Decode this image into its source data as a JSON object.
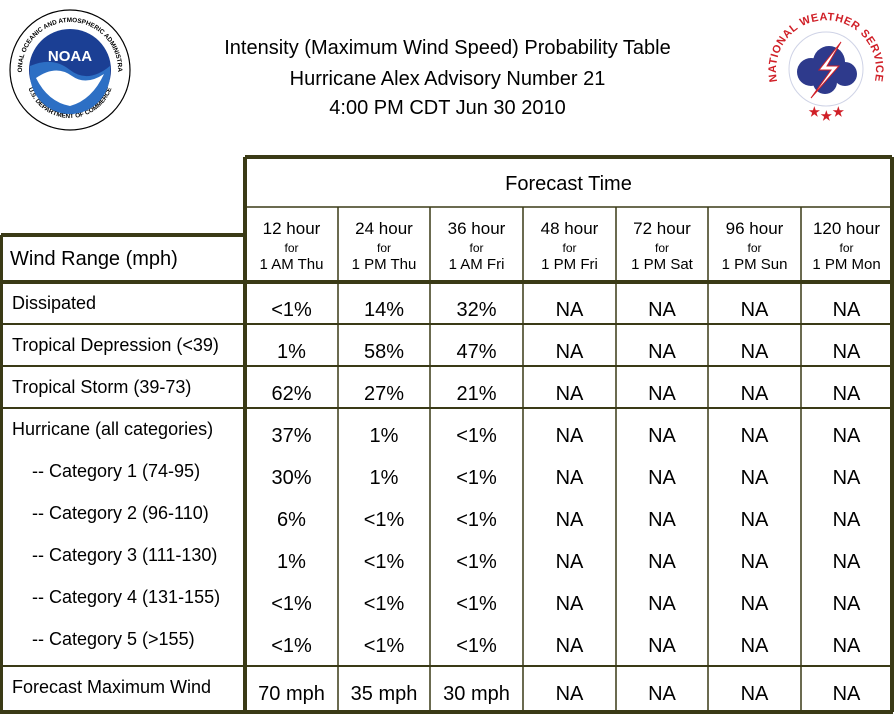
{
  "header": {
    "title_line1": "Intensity (Maximum Wind Speed) Probability Table",
    "title_line2": "Hurricane Alex Advisory Number 21",
    "title_line3": "4:00 PM CDT Jun 30 2010",
    "noaa_logo": {
      "icon": "noaa-logo-icon",
      "center_text": "NOAA",
      "ring_text_top": "NATIONAL OCEANIC AND ATMOSPHERIC ADMINISTRATION",
      "ring_text_bottom": "U.S. DEPARTMENT OF COMMERCE"
    },
    "nws_logo": {
      "icon": "nws-logo-icon",
      "ring_text": "NATIONAL WEATHER SERVICE"
    }
  },
  "colors": {
    "border": "#3a3a16",
    "noaa_blue": "#1b3f94",
    "noaa_light": "#2d6fc4",
    "nws_red": "#d01f27",
    "nws_cloud": "#2e3a8c"
  },
  "chart_data": {
    "type": "table",
    "group_header": "Forecast Time",
    "row_header": "Wind Range (mph)",
    "columns": [
      {
        "hour": "12 hour",
        "for": "for",
        "when": "1 AM Thu"
      },
      {
        "hour": "24 hour",
        "for": "for",
        "when": "1 PM Thu"
      },
      {
        "hour": "36 hour",
        "for": "for",
        "when": "1 AM Fri"
      },
      {
        "hour": "48 hour",
        "for": "for",
        "when": "1 PM Fri"
      },
      {
        "hour": "72 hour",
        "for": "for",
        "when": "1 PM Sat"
      },
      {
        "hour": "96 hour",
        "for": "for",
        "when": "1 PM Sun"
      },
      {
        "hour": "120 hour",
        "for": "for",
        "when": "1 PM Mon"
      }
    ],
    "rows": [
      {
        "label": "Dissipated",
        "values": [
          "<1%",
          "14%",
          "32%",
          "NA",
          "NA",
          "NA",
          "NA"
        ]
      },
      {
        "label": "Tropical Depression (<39)",
        "values": [
          "1%",
          "58%",
          "47%",
          "NA",
          "NA",
          "NA",
          "NA"
        ]
      },
      {
        "label": "Tropical Storm (39-73)",
        "values": [
          "62%",
          "27%",
          "21%",
          "NA",
          "NA",
          "NA",
          "NA"
        ]
      },
      {
        "label": "Hurricane (all categories)",
        "values": [
          "37%",
          "1%",
          "<1%",
          "NA",
          "NA",
          "NA",
          "NA"
        ]
      },
      {
        "label": "-- Category 1 (74-95)",
        "values": [
          "30%",
          "1%",
          "<1%",
          "NA",
          "NA",
          "NA",
          "NA"
        ]
      },
      {
        "label": "-- Category 2 (96-110)",
        "values": [
          "6%",
          "<1%",
          "<1%",
          "NA",
          "NA",
          "NA",
          "NA"
        ]
      },
      {
        "label": "-- Category 3 (111-130)",
        "values": [
          "1%",
          "<1%",
          "<1%",
          "NA",
          "NA",
          "NA",
          "NA"
        ]
      },
      {
        "label": "-- Category 4 (131-155)",
        "values": [
          "<1%",
          "<1%",
          "<1%",
          "NA",
          "NA",
          "NA",
          "NA"
        ]
      },
      {
        "label": "-- Category 5 (>155)",
        "values": [
          "<1%",
          "<1%",
          "<1%",
          "NA",
          "NA",
          "NA",
          "NA"
        ]
      },
      {
        "label": "Forecast Maximum Wind",
        "values": [
          "70 mph",
          "35 mph",
          "30 mph",
          "NA",
          "NA",
          "NA",
          "NA"
        ]
      }
    ]
  }
}
